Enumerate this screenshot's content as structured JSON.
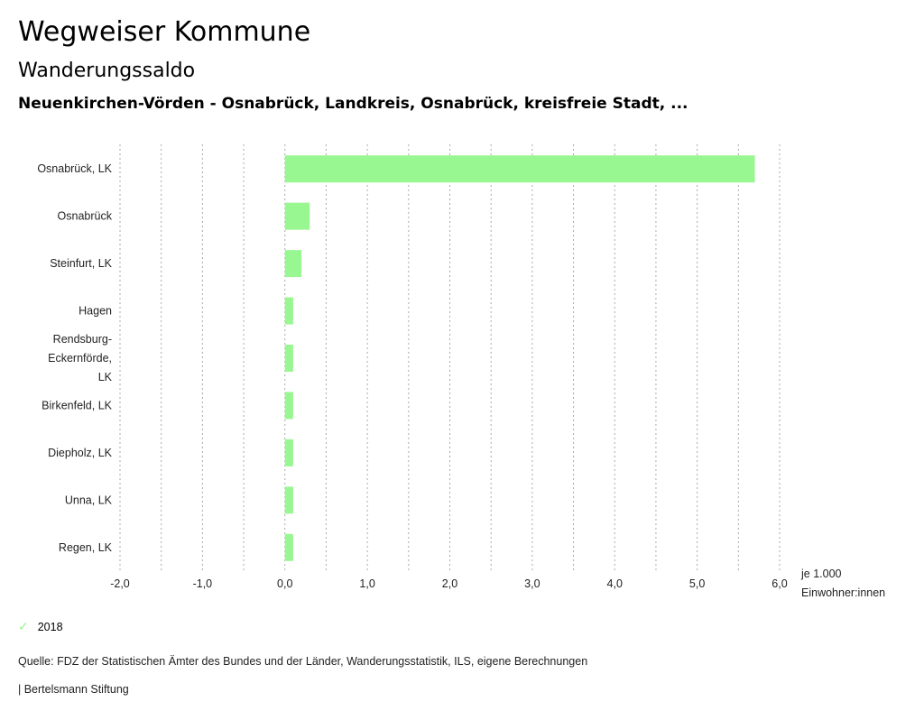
{
  "header": {
    "title": "Wegweiser Kommune",
    "subtitle": "Wanderungssaldo",
    "region": "Neuenkirchen-Vörden - Osnabrück, Landkreis, Osnabrück, kreisfreie Stadt, ..."
  },
  "chart_data": {
    "type": "bar",
    "orientation": "horizontal",
    "categories": [
      "Osnabrück, LK",
      "Osnabrück",
      "Steinfurt, LK",
      "Hagen",
      "Rendsburg-Eckernförde, LK",
      "Birkenfeld, LK",
      "Diepholz, LK",
      "Unna, LK",
      "Regen, LK"
    ],
    "category_lines": [
      [
        "Osnabrück, LK"
      ],
      [
        "Osnabrück"
      ],
      [
        "Steinfurt, LK"
      ],
      [
        "Hagen"
      ],
      [
        "Rendsburg-",
        "Eckernförde,",
        "LK"
      ],
      [
        "Birkenfeld, LK"
      ],
      [
        "Diepholz, LK"
      ],
      [
        "Unna, LK"
      ],
      [
        "Regen, LK"
      ]
    ],
    "series": [
      {
        "name": "2018",
        "values": [
          5.7,
          0.3,
          0.2,
          0.1,
          0.1,
          0.1,
          0.1,
          0.1,
          0.1
        ],
        "color": "#99f792"
      }
    ],
    "xlim": [
      -2,
      6
    ],
    "xticks": [
      -2,
      -1,
      0,
      1,
      2,
      3,
      4,
      5,
      6
    ],
    "xtick_labels": [
      "-2,0",
      "-1,0",
      "0,0",
      "1,0",
      "2,0",
      "3,0",
      "4,0",
      "5,0",
      "6,0"
    ],
    "gridlines": [
      -2,
      -1.5,
      -1,
      -0.5,
      0,
      0.5,
      1,
      1.5,
      2,
      2.5,
      3,
      3.5,
      4,
      4.5,
      5,
      5.5,
      6
    ],
    "xlabel_lines": [
      "je 1.000",
      "Einwohner:innen"
    ],
    "grid": true,
    "legend": "bottom-left"
  },
  "legend": {
    "label": "2018"
  },
  "footer": {
    "source": "Quelle: FDZ der Statistischen Ämter des Bundes und der Länder, Wanderungsstatistik, ILS, eigene Berechnungen",
    "brand": "| Bertelsmann Stiftung"
  }
}
